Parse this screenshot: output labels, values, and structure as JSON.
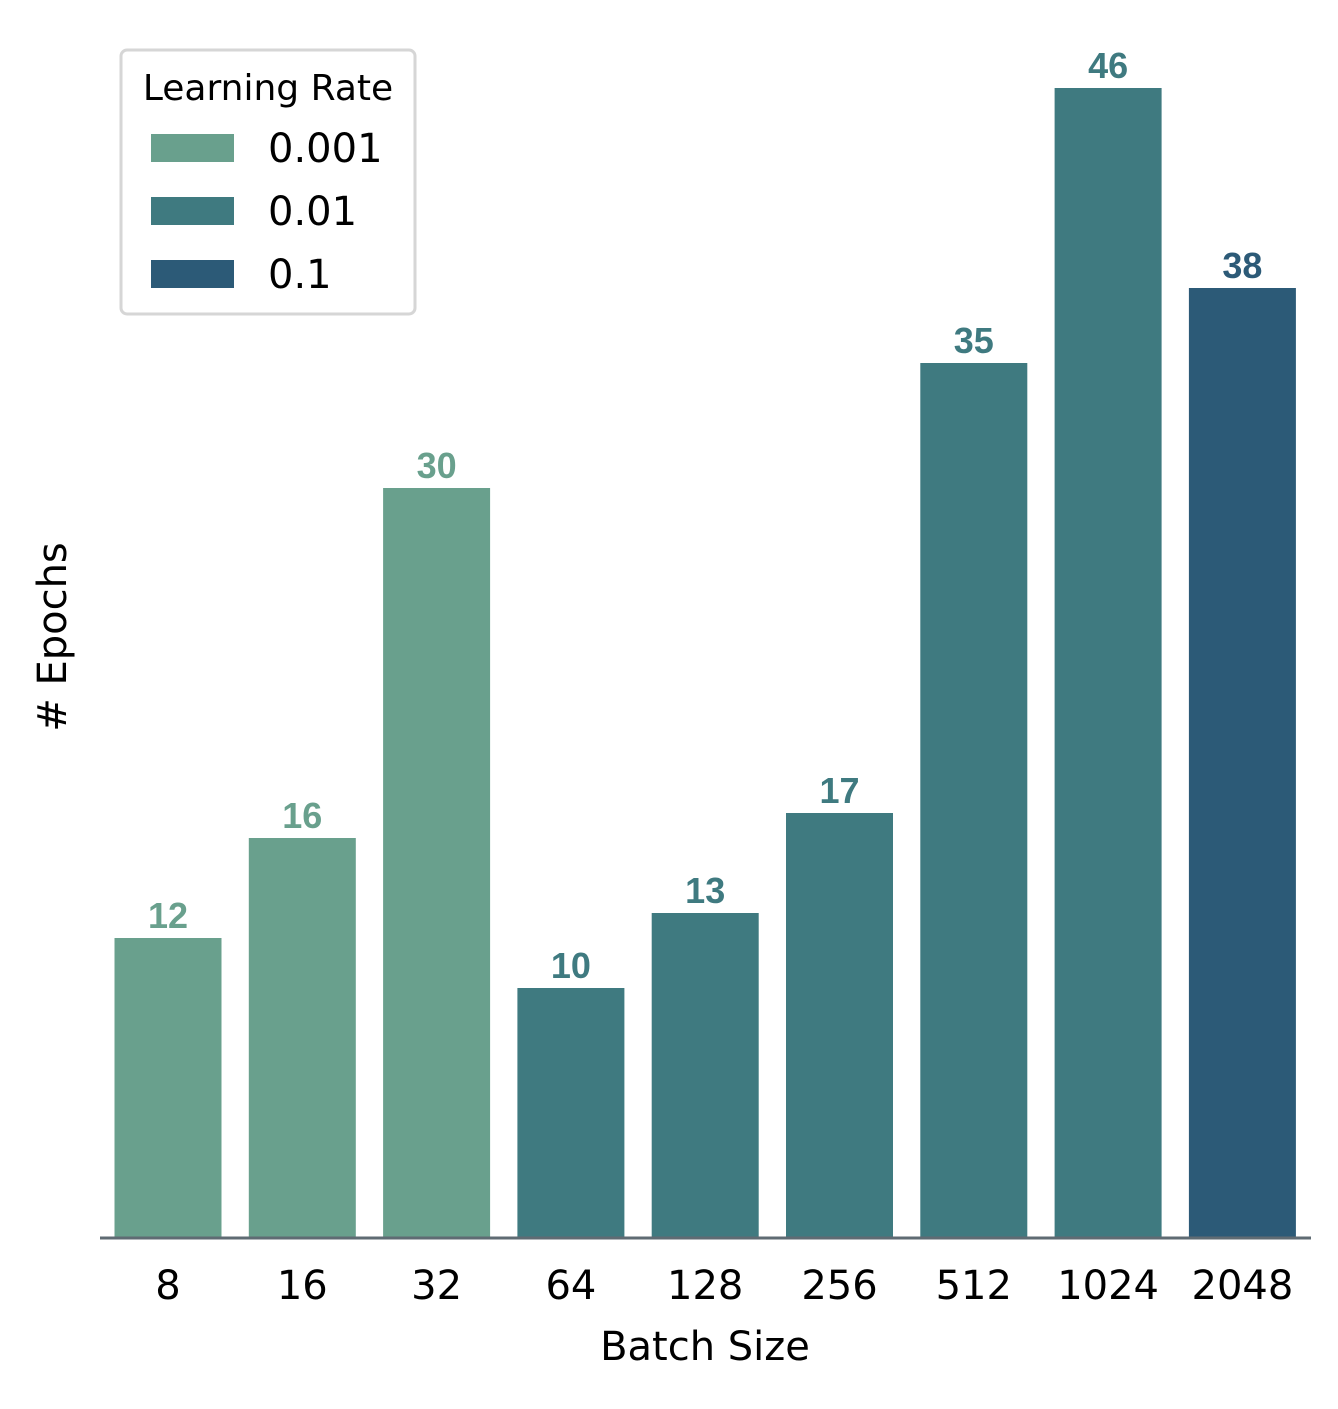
{
  "chart_data": {
    "type": "bar",
    "xlabel": "Batch Size",
    "ylabel": "# Epochs",
    "ylim": [
      0,
      46
    ],
    "grid": false,
    "legend_placement": "top-left",
    "categories": [
      "8",
      "16",
      "32",
      "64",
      "128",
      "256",
      "512",
      "1024",
      "2048"
    ],
    "values": [
      12,
      16,
      30,
      10,
      13,
      17,
      35,
      46,
      38
    ],
    "bar_groups": [
      "0.001",
      "0.001",
      "0.001",
      "0.01",
      "0.01",
      "0.01",
      "0.01",
      "0.01",
      "0.1"
    ],
    "legend": {
      "title": "Learning Rate",
      "entries": [
        {
          "name": "0.001",
          "color": "#69a08d"
        },
        {
          "name": "0.01",
          "color": "#3f7a80"
        },
        {
          "name": "0.1",
          "color": "#2c5a77"
        }
      ]
    },
    "axis_color": "#5f6b73"
  }
}
